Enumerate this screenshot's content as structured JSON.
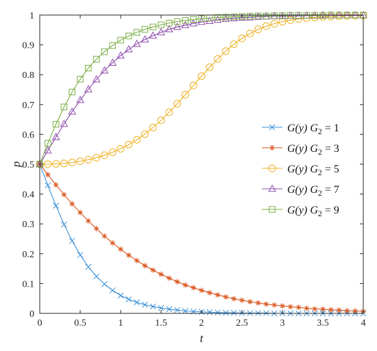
{
  "chart_data": {
    "type": "line",
    "title": "",
    "xlabel": "t",
    "ylabel": "p",
    "xlim": [
      0,
      4
    ],
    "ylim": [
      0,
      1
    ],
    "xticks": [
      0,
      0.5,
      1,
      1.5,
      2,
      2.5,
      3,
      3.5,
      4
    ],
    "xtick_labels": [
      "0",
      "0.5",
      "1",
      "1.5",
      "2",
      "2.5",
      "3",
      "3.5",
      "4"
    ],
    "yticks": [
      0,
      0.1,
      0.2,
      0.3,
      0.4,
      0.5,
      0.6,
      0.7,
      0.8,
      0.9,
      1
    ],
    "ytick_labels": [
      "0",
      "0.1",
      "0.2",
      "0.3",
      "0.4",
      "0.5",
      "0.6",
      "0.7",
      "0.8",
      "0.9",
      "1"
    ],
    "grid": false,
    "legend_position": "right",
    "x": [
      0,
      0.1,
      0.2,
      0.3,
      0.4,
      0.5,
      0.6,
      0.7,
      0.8,
      0.9,
      1,
      1.1,
      1.2,
      1.3,
      1.4,
      1.5,
      1.6,
      1.7,
      1.8,
      1.9,
      2,
      2.1,
      2.2,
      2.3,
      2.4,
      2.5,
      2.6,
      2.7,
      2.8,
      2.9,
      3,
      3.1,
      3.2,
      3.3,
      3.4,
      3.5,
      3.6,
      3.7,
      3.8,
      3.9,
      4
    ],
    "series": [
      {
        "name": "G(y) G₂ = 1",
        "color": "#3b8fd6",
        "marker": "x",
        "values": [
          0.5,
          0.429,
          0.361,
          0.298,
          0.243,
          0.196,
          0.156,
          0.124,
          0.098,
          0.077,
          0.06,
          0.047,
          0.037,
          0.029,
          0.023,
          0.018,
          0.014,
          0.011,
          0.008,
          0.006,
          0.005,
          0.004,
          0.003,
          0.002,
          0.002,
          0.001,
          0.001,
          0.001,
          0.001,
          0.0,
          0.0,
          0.0,
          0.0,
          0.0,
          0.0,
          0.0,
          0.0,
          0.0,
          0.0,
          0.0,
          0.0
        ]
      },
      {
        "name": "G(y) G₂ = 3",
        "color": "#d9541c",
        "marker": "asterisk",
        "values": [
          0.5,
          0.465,
          0.431,
          0.398,
          0.367,
          0.338,
          0.31,
          0.284,
          0.259,
          0.236,
          0.215,
          0.195,
          0.177,
          0.16,
          0.145,
          0.131,
          0.118,
          0.106,
          0.095,
          0.086,
          0.077,
          0.069,
          0.062,
          0.055,
          0.049,
          0.044,
          0.039,
          0.035,
          0.031,
          0.028,
          0.025,
          0.022,
          0.02,
          0.017,
          0.015,
          0.014,
          0.012,
          0.011,
          0.009,
          0.008,
          0.007
        ]
      },
      {
        "name": "G(y) G₂ = 5",
        "color": "#eeb122",
        "marker": "circle",
        "values": [
          0.5,
          0.5,
          0.501,
          0.503,
          0.506,
          0.51,
          0.515,
          0.522,
          0.53,
          0.54,
          0.552,
          0.566,
          0.582,
          0.601,
          0.623,
          0.647,
          0.674,
          0.703,
          0.733,
          0.764,
          0.795,
          0.825,
          0.853,
          0.879,
          0.902,
          0.922,
          0.938,
          0.952,
          0.963,
          0.971,
          0.978,
          0.983,
          0.987,
          0.99,
          0.992,
          0.994,
          0.995,
          0.996,
          0.997,
          0.998,
          0.998
        ]
      },
      {
        "name": "G(y) G₂ = 7",
        "color": "#8c4bab",
        "marker": "triangle",
        "values": [
          0.5,
          0.546,
          0.591,
          0.635,
          0.676,
          0.715,
          0.751,
          0.784,
          0.814,
          0.84,
          0.864,
          0.885,
          0.903,
          0.918,
          0.931,
          0.942,
          0.952,
          0.96,
          0.966,
          0.972,
          0.977,
          0.98,
          0.984,
          0.987,
          0.989,
          0.991,
          0.992,
          0.994,
          0.995,
          0.996,
          0.996,
          0.997,
          0.997,
          0.998,
          0.998,
          0.999,
          0.999,
          0.999,
          0.999,
          0.999,
          0.999
        ]
      },
      {
        "name": "G(y) G₂ = 9",
        "color": "#7aae45",
        "marker": "square",
        "values": [
          0.5,
          0.57,
          0.634,
          0.692,
          0.742,
          0.785,
          0.822,
          0.852,
          0.877,
          0.898,
          0.916,
          0.93,
          0.942,
          0.952,
          0.96,
          0.967,
          0.973,
          0.978,
          0.982,
          0.985,
          0.988,
          0.99,
          0.992,
          0.993,
          0.994,
          0.995,
          0.996,
          0.997,
          0.997,
          0.998,
          0.998,
          0.999,
          0.999,
          0.999,
          0.999,
          0.999,
          1.0,
          1.0,
          1.0,
          1.0,
          1.0
        ]
      }
    ]
  }
}
